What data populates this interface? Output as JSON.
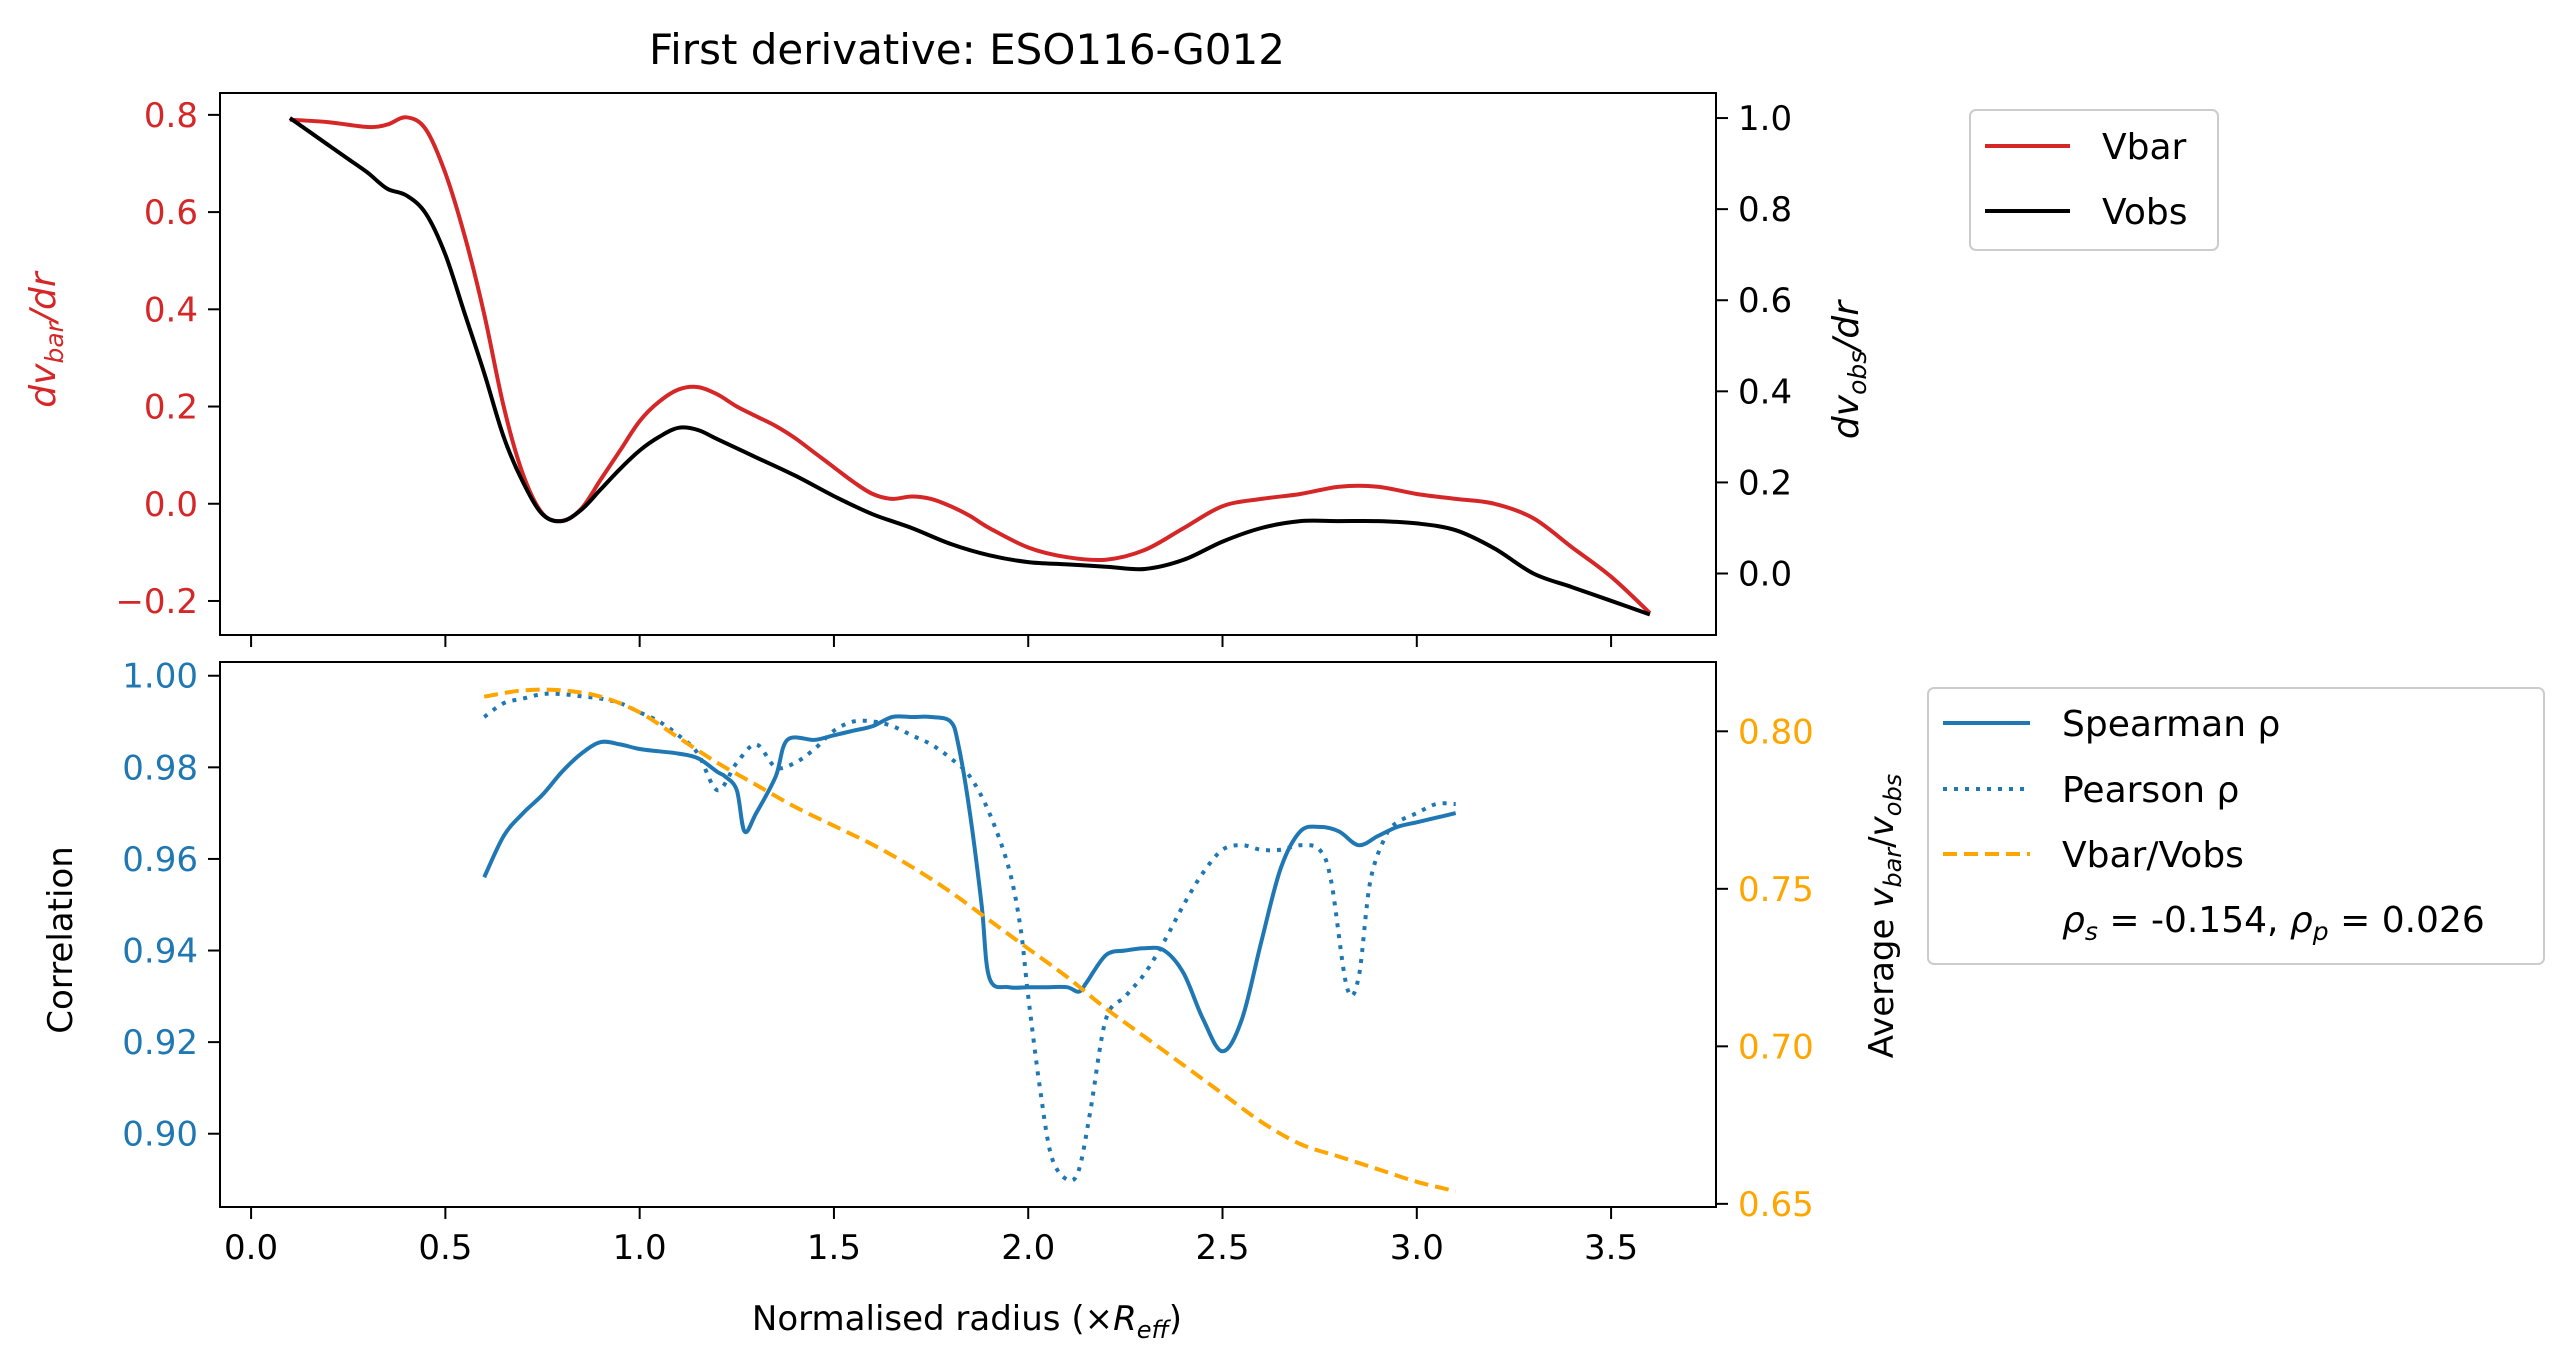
{
  "title": "First derivative: ESO116-G012",
  "colors": {
    "vbar": "#d62728",
    "vobs": "#000000",
    "spearman": "#1f77b4",
    "pearson": "#1f77b4",
    "ratio": "#ffa500"
  },
  "chart_data": [
    {
      "type": "line",
      "panel": "top",
      "title": "First derivative: ESO116-G012",
      "ylabel_left": {
        "base": "dv",
        "sub": "bar",
        "tail": "/dr"
      },
      "ylabel_right": {
        "base": "dv",
        "sub": "obs",
        "tail": "/dr"
      },
      "xlim": [
        -0.08,
        3.77
      ],
      "ylim_left": [
        -0.27,
        0.845
      ],
      "ylim_right": [
        -0.135,
        1.055
      ],
      "yticks_left": [
        -0.2,
        0.0,
        0.2,
        0.4,
        0.6,
        0.8
      ],
      "yticks_left_labels": [
        "−0.2",
        "0.0",
        "0.2",
        "0.4",
        "0.6",
        "0.8"
      ],
      "yticks_right": [
        0.0,
        0.2,
        0.4,
        0.6,
        0.8,
        1.0
      ],
      "yticks_right_labels": [
        "0.0",
        "0.2",
        "0.4",
        "0.6",
        "0.8",
        "1.0"
      ],
      "legend": {
        "placement": "outside-top-right",
        "entries": [
          "Vbar",
          "Vobs"
        ]
      },
      "series": [
        {
          "name": "Vbar",
          "axis": "left",
          "style": "solid",
          "x": [
            0.1,
            0.2,
            0.3,
            0.35,
            0.4,
            0.45,
            0.5,
            0.55,
            0.6,
            0.65,
            0.7,
            0.75,
            0.8,
            0.85,
            0.9,
            0.95,
            1.0,
            1.05,
            1.1,
            1.15,
            1.2,
            1.25,
            1.3,
            1.35,
            1.4,
            1.45,
            1.5,
            1.55,
            1.6,
            1.65,
            1.7,
            1.75,
            1.8,
            1.85,
            1.9,
            2.0,
            2.1,
            2.2,
            2.3,
            2.4,
            2.5,
            2.6,
            2.7,
            2.8,
            2.9,
            3.0,
            3.1,
            3.2,
            3.3,
            3.4,
            3.5,
            3.6
          ],
          "y": [
            0.79,
            0.785,
            0.775,
            0.78,
            0.795,
            0.77,
            0.68,
            0.55,
            0.39,
            0.2,
            0.06,
            -0.02,
            -0.035,
            -0.01,
            0.05,
            0.11,
            0.17,
            0.21,
            0.235,
            0.24,
            0.225,
            0.2,
            0.18,
            0.16,
            0.135,
            0.105,
            0.075,
            0.045,
            0.02,
            0.01,
            0.015,
            0.01,
            -0.005,
            -0.025,
            -0.05,
            -0.09,
            -0.11,
            -0.115,
            -0.095,
            -0.05,
            -0.005,
            0.01,
            0.02,
            0.035,
            0.035,
            0.02,
            0.01,
            0.0,
            -0.03,
            -0.09,
            -0.15,
            -0.225
          ]
        },
        {
          "name": "Vobs",
          "axis": "right",
          "style": "solid",
          "x": [
            0.1,
            0.15,
            0.2,
            0.25,
            0.3,
            0.35,
            0.4,
            0.45,
            0.5,
            0.55,
            0.6,
            0.65,
            0.7,
            0.75,
            0.8,
            0.85,
            0.9,
            0.95,
            1.0,
            1.05,
            1.1,
            1.15,
            1.2,
            1.3,
            1.4,
            1.5,
            1.6,
            1.7,
            1.8,
            1.9,
            2.0,
            2.1,
            2.2,
            2.3,
            2.4,
            2.5,
            2.6,
            2.7,
            2.8,
            2.9,
            3.0,
            3.1,
            3.2,
            3.3,
            3.4,
            3.5,
            3.6
          ],
          "y": [
            1.0,
            0.97,
            0.94,
            0.91,
            0.88,
            0.845,
            0.83,
            0.79,
            0.7,
            0.57,
            0.44,
            0.3,
            0.2,
            0.13,
            0.115,
            0.14,
            0.185,
            0.23,
            0.27,
            0.3,
            0.32,
            0.315,
            0.295,
            0.255,
            0.215,
            0.17,
            0.13,
            0.1,
            0.065,
            0.04,
            0.025,
            0.02,
            0.015,
            0.01,
            0.03,
            0.07,
            0.1,
            0.115,
            0.115,
            0.115,
            0.11,
            0.095,
            0.055,
            0.0,
            -0.03,
            -0.06,
            -0.09
          ]
        }
      ]
    },
    {
      "type": "line",
      "panel": "bottom",
      "xlabel": {
        "base": "Normalised radius (×",
        "italic": "R",
        "sub": "eff",
        "tail": ")"
      },
      "ylabel_left": "Correlation",
      "ylabel_right": {
        "base": "Average ",
        "v1": "v",
        "sub1": "bar",
        "mid": "/",
        "v2": "v",
        "sub2": "obs"
      },
      "xlim": [
        -0.08,
        3.77
      ],
      "ylim_left": [
        0.884,
        1.003
      ],
      "ylim_right": [
        0.649,
        0.822
      ],
      "xticks": [
        0.0,
        0.5,
        1.0,
        1.5,
        2.0,
        2.5,
        3.0,
        3.5
      ],
      "xticks_labels": [
        "0.0",
        "0.5",
        "1.0",
        "1.5",
        "2.0",
        "2.5",
        "3.0",
        "3.5"
      ],
      "yticks_left": [
        0.9,
        0.92,
        0.94,
        0.96,
        0.98,
        1.0
      ],
      "yticks_left_labels": [
        "0.90",
        "0.92",
        "0.94",
        "0.96",
        "0.98",
        "1.00"
      ],
      "yticks_right": [
        0.65,
        0.7,
        0.75,
        0.8
      ],
      "yticks_right_labels": [
        "0.65",
        "0.70",
        "0.75",
        "0.80"
      ],
      "legend": {
        "placement": "outside-right",
        "entries": [
          "Spearman ρ",
          "Pearson ρ",
          "Vbar/Vobs"
        ],
        "annotation": {
          "rho_s": "-0.154",
          "rho_p": "0.026"
        }
      },
      "series": [
        {
          "name": "Spearman ρ",
          "axis": "left",
          "style": "solid",
          "x": [
            0.6,
            0.65,
            0.7,
            0.75,
            0.8,
            0.85,
            0.9,
            0.95,
            1.0,
            1.05,
            1.1,
            1.15,
            1.2,
            1.22,
            1.25,
            1.27,
            1.3,
            1.35,
            1.38,
            1.45,
            1.5,
            1.55,
            1.6,
            1.65,
            1.7,
            1.75,
            1.8,
            1.82,
            1.85,
            1.88,
            1.9,
            1.95,
            2.0,
            2.05,
            2.1,
            2.13,
            2.15,
            2.2,
            2.25,
            2.3,
            2.35,
            2.4,
            2.45,
            2.5,
            2.55,
            2.6,
            2.65,
            2.7,
            2.75,
            2.8,
            2.85,
            2.9,
            2.95,
            3.0,
            3.05,
            3.1
          ],
          "y": [
            0.956,
            0.965,
            0.97,
            0.974,
            0.979,
            0.983,
            0.9855,
            0.985,
            0.984,
            0.9835,
            0.983,
            0.982,
            0.979,
            0.978,
            0.975,
            0.966,
            0.97,
            0.978,
            0.986,
            0.986,
            0.987,
            0.988,
            0.989,
            0.991,
            0.991,
            0.991,
            0.99,
            0.985,
            0.97,
            0.95,
            0.934,
            0.932,
            0.932,
            0.932,
            0.932,
            0.931,
            0.933,
            0.939,
            0.94,
            0.9405,
            0.94,
            0.935,
            0.925,
            0.918,
            0.925,
            0.942,
            0.958,
            0.966,
            0.967,
            0.966,
            0.963,
            0.965,
            0.967,
            0.968,
            0.969,
            0.97
          ]
        },
        {
          "name": "Pearson ρ",
          "axis": "left",
          "style": "dotted",
          "x": [
            0.6,
            0.65,
            0.7,
            0.75,
            0.8,
            0.85,
            0.9,
            0.95,
            1.0,
            1.05,
            1.1,
            1.15,
            1.2,
            1.25,
            1.3,
            1.35,
            1.4,
            1.45,
            1.5,
            1.55,
            1.6,
            1.65,
            1.7,
            1.75,
            1.8,
            1.85,
            1.9,
            1.95,
            1.98,
            2.0,
            2.03,
            2.06,
            2.1,
            2.13,
            2.16,
            2.2,
            2.25,
            2.3,
            2.35,
            2.4,
            2.45,
            2.5,
            2.55,
            2.6,
            2.65,
            2.7,
            2.75,
            2.78,
            2.82,
            2.85,
            2.88,
            2.92,
            2.95,
            3.0,
            3.05,
            3.1
          ],
          "y": [
            0.991,
            0.994,
            0.995,
            0.996,
            0.996,
            0.9955,
            0.995,
            0.994,
            0.992,
            0.99,
            0.987,
            0.983,
            0.975,
            0.981,
            0.985,
            0.98,
            0.981,
            0.984,
            0.988,
            0.99,
            0.99,
            0.989,
            0.987,
            0.985,
            0.982,
            0.978,
            0.97,
            0.958,
            0.945,
            0.93,
            0.91,
            0.895,
            0.89,
            0.892,
            0.905,
            0.925,
            0.93,
            0.935,
            0.942,
            0.95,
            0.957,
            0.962,
            0.963,
            0.962,
            0.962,
            0.963,
            0.962,
            0.955,
            0.932,
            0.934,
            0.955,
            0.965,
            0.968,
            0.97,
            0.972,
            0.972
          ]
        },
        {
          "name": "Vbar/Vobs",
          "axis": "right",
          "style": "dashed",
          "x": [
            0.6,
            0.7,
            0.8,
            0.9,
            1.0,
            1.1,
            1.2,
            1.3,
            1.4,
            1.5,
            1.6,
            1.7,
            1.8,
            1.9,
            2.0,
            2.1,
            2.2,
            2.3,
            2.4,
            2.5,
            2.6,
            2.7,
            2.8,
            2.9,
            3.0,
            3.1
          ],
          "y": [
            0.811,
            0.813,
            0.813,
            0.811,
            0.806,
            0.798,
            0.79,
            0.783,
            0.776,
            0.77,
            0.764,
            0.757,
            0.749,
            0.74,
            0.731,
            0.722,
            0.712,
            0.703,
            0.694,
            0.685,
            0.676,
            0.669,
            0.665,
            0.661,
            0.657,
            0.654
          ]
        }
      ]
    }
  ]
}
